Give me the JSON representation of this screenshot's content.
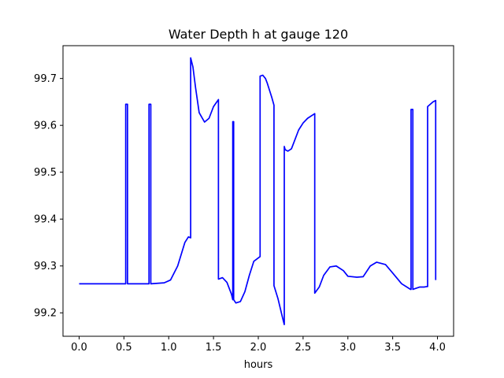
{
  "chart_data": {
    "type": "line",
    "title": "Water Depth h at gauge 120",
    "xlabel": "hours",
    "ylabel": "",
    "xlim": [
      -0.18,
      4.18
    ],
    "ylim": [
      99.15,
      99.77
    ],
    "grid": false,
    "legend": "none",
    "x_ticks": [
      0.0,
      0.5,
      1.0,
      1.5,
      2.0,
      2.5,
      3.0,
      3.5,
      4.0
    ],
    "x_tick_labels": [
      "0.0",
      "0.5",
      "1.0",
      "1.5",
      "2.0",
      "2.5",
      "3.0",
      "3.5",
      "4.0"
    ],
    "y_ticks": [
      99.2,
      99.3,
      99.4,
      99.5,
      99.6,
      99.7
    ],
    "y_tick_labels": [
      "99.2",
      "99.3",
      "99.4",
      "99.5",
      "99.6",
      "99.7"
    ],
    "series": [
      {
        "color": "#0000ff",
        "points": [
          [
            0.0,
            99.262
          ],
          [
            0.52,
            99.262
          ],
          [
            0.52,
            99.645
          ],
          [
            0.54,
            99.645
          ],
          [
            0.54,
            99.262
          ],
          [
            0.78,
            99.262
          ],
          [
            0.78,
            99.645
          ],
          [
            0.8,
            99.645
          ],
          [
            0.8,
            99.262
          ],
          [
            0.95,
            99.264
          ],
          [
            1.02,
            99.27
          ],
          [
            1.1,
            99.3
          ],
          [
            1.18,
            99.35
          ],
          [
            1.22,
            99.362
          ],
          [
            1.245,
            99.36
          ],
          [
            1.245,
            99.744
          ],
          [
            1.27,
            99.725
          ],
          [
            1.3,
            99.68
          ],
          [
            1.34,
            99.627
          ],
          [
            1.4,
            99.607
          ],
          [
            1.45,
            99.615
          ],
          [
            1.5,
            99.64
          ],
          [
            1.555,
            99.655
          ],
          [
            1.555,
            99.272
          ],
          [
            1.6,
            99.275
          ],
          [
            1.65,
            99.265
          ],
          [
            1.7,
            99.24
          ],
          [
            1.715,
            99.228
          ],
          [
            1.715,
            99.608
          ],
          [
            1.725,
            99.608
          ],
          [
            1.725,
            99.228
          ],
          [
            1.75,
            99.221
          ],
          [
            1.8,
            99.224
          ],
          [
            1.85,
            99.245
          ],
          [
            1.9,
            99.28
          ],
          [
            1.95,
            99.31
          ],
          [
            2.02,
            99.32
          ],
          [
            2.02,
            99.705
          ],
          [
            2.05,
            99.707
          ],
          [
            2.08,
            99.7
          ],
          [
            2.1,
            99.69
          ],
          [
            2.15,
            99.66
          ],
          [
            2.175,
            99.643
          ],
          [
            2.175,
            99.258
          ],
          [
            2.22,
            99.23
          ],
          [
            2.27,
            99.19
          ],
          [
            2.29,
            99.175
          ],
          [
            2.29,
            99.555
          ],
          [
            2.3,
            99.548
          ],
          [
            2.33,
            99.545
          ],
          [
            2.37,
            99.55
          ],
          [
            2.4,
            99.565
          ],
          [
            2.45,
            99.59
          ],
          [
            2.5,
            99.605
          ],
          [
            2.55,
            99.615
          ],
          [
            2.63,
            99.625
          ],
          [
            2.63,
            99.242
          ],
          [
            2.68,
            99.255
          ],
          [
            2.73,
            99.28
          ],
          [
            2.8,
            99.298
          ],
          [
            2.87,
            99.3
          ],
          [
            2.95,
            99.29
          ],
          [
            3.0,
            99.278
          ],
          [
            3.1,
            99.276
          ],
          [
            3.17,
            99.277
          ],
          [
            3.25,
            99.3
          ],
          [
            3.32,
            99.308
          ],
          [
            3.42,
            99.303
          ],
          [
            3.5,
            99.285
          ],
          [
            3.6,
            99.262
          ],
          [
            3.7,
            99.25
          ],
          [
            3.705,
            99.25
          ],
          [
            3.705,
            99.634
          ],
          [
            3.725,
            99.634
          ],
          [
            3.725,
            99.25
          ],
          [
            3.8,
            99.255
          ],
          [
            3.85,
            99.255
          ],
          [
            3.88,
            99.256
          ],
          [
            3.89,
            99.256
          ],
          [
            3.89,
            99.64
          ],
          [
            3.95,
            99.65
          ],
          [
            3.98,
            99.653
          ],
          [
            3.98,
            99.27
          ]
        ]
      }
    ]
  }
}
